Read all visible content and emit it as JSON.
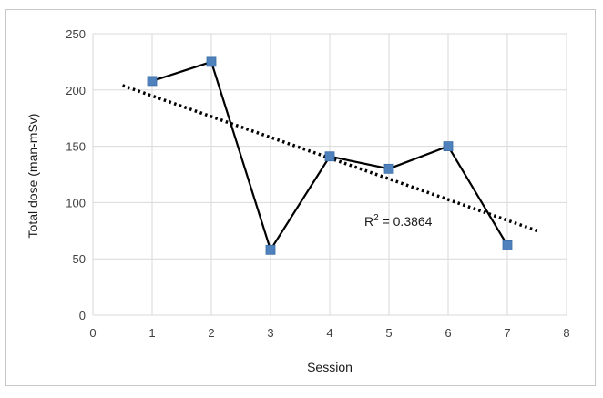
{
  "chart_data": {
    "type": "scatter",
    "title": "",
    "xlabel": "Session",
    "ylabel": "Total dose (man-mSv)",
    "xlim": [
      0,
      8
    ],
    "ylim": [
      0,
      250
    ],
    "xticks": [
      0,
      1,
      2,
      3,
      4,
      5,
      6,
      7,
      8
    ],
    "yticks": [
      0,
      50,
      100,
      150,
      200,
      250
    ],
    "grid": true,
    "legend": "none",
    "series": [
      {
        "x": [
          1,
          2,
          3,
          4,
          5,
          6,
          7
        ],
        "y": [
          208,
          225,
          58,
          141,
          130,
          150,
          62
        ],
        "marker": "square",
        "line": "solid",
        "marker_color": "#4f81bd",
        "line_color": "#000000"
      }
    ],
    "trendline": {
      "type": "linear",
      "x_range": [
        0.5,
        7.5
      ],
      "y_at_start": 204,
      "y_at_end": 75,
      "style": "dotted",
      "color": "#000000"
    },
    "annotations": [
      {
        "base": "R",
        "superscript": "2",
        "rest": " = 0.3864"
      }
    ]
  }
}
